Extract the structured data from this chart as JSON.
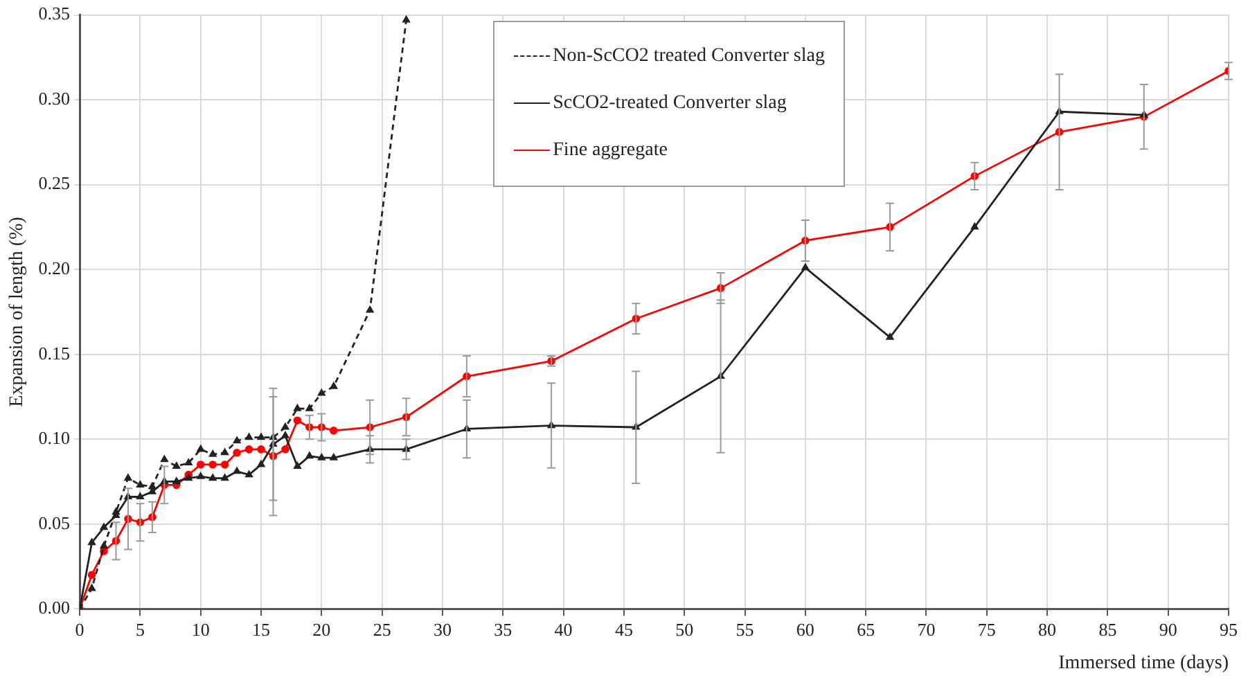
{
  "chart_data": {
    "type": "line",
    "xlabel": "Immersed time (days)",
    "ylabel": "Expansion of length (%)",
    "xlim": [
      0,
      95
    ],
    "xticks": [
      0,
      5,
      10,
      15,
      20,
      25,
      30,
      35,
      40,
      45,
      50,
      55,
      60,
      65,
      70,
      75,
      80,
      85,
      90,
      95
    ],
    "ylim": [
      0,
      0.35
    ],
    "yticks": [
      {
        "value": 0,
        "label": "0.00"
      },
      {
        "value": 0.05,
        "label": "0.05"
      },
      {
        "value": 0.1,
        "label": "0.10"
      },
      {
        "value": 0.15,
        "label": "0.15"
      },
      {
        "value": 0.2,
        "label": "0.20"
      },
      {
        "value": 0.25,
        "label": "0.25"
      },
      {
        "value": 0.3,
        "label": "0.30"
      },
      {
        "value": 0.35,
        "label": "0.35"
      }
    ],
    "grid": true,
    "legend": "top",
    "series": [
      {
        "name": "Non-ScCO2 treated Converter slag",
        "color": "#222222",
        "line_style": "dashed",
        "marker": "triangle",
        "x": [
          0,
          1,
          2,
          3,
          4,
          5,
          6,
          7,
          8,
          9,
          10,
          11,
          12,
          13,
          14,
          15,
          16,
          17,
          18,
          19,
          20,
          21,
          24,
          27
        ],
        "values": [
          0,
          0.012,
          0.037,
          0.057,
          0.077,
          0.073,
          0.072,
          0.088,
          0.084,
          0.086,
          0.094,
          0.091,
          0.092,
          0.099,
          0.101,
          0.101,
          0.101,
          0.107,
          0.118,
          0.118,
          0.127,
          0.131,
          0.176,
          0.347
        ]
      },
      {
        "name": "ScCO2-treated Converter slag",
        "color": "#222222",
        "line_style": "solid",
        "marker": "triangle",
        "x": [
          0,
          1,
          2,
          3,
          4,
          5,
          6,
          7,
          8,
          9,
          10,
          11,
          12,
          13,
          14,
          15,
          16,
          17,
          18,
          19,
          20,
          21,
          24,
          27,
          32,
          39,
          46,
          53,
          60,
          67,
          74,
          81,
          88
        ],
        "values": [
          0,
          0.039,
          0.048,
          0.055,
          0.066,
          0.066,
          0.069,
          0.075,
          0.075,
          0.077,
          0.078,
          0.077,
          0.077,
          0.081,
          0.079,
          0.085,
          0.097,
          0.102,
          0.084,
          0.09,
          0.089,
          0.089,
          0.094,
          0.094,
          0.106,
          0.108,
          0.107,
          0.137,
          0.201,
          0.16,
          0.225,
          0.293,
          0.291
        ],
        "errors": [
          null,
          null,
          null,
          null,
          null,
          null,
          null,
          null,
          null,
          null,
          null,
          null,
          null,
          null,
          null,
          null,
          0.033,
          null,
          null,
          null,
          null,
          null,
          0.008,
          0.006,
          0.017,
          0.025,
          0.033,
          0.045,
          null,
          null,
          null,
          null,
          null
        ]
      },
      {
        "name": "Fine aggregate",
        "color": "#ff0000",
        "line_style": "solid",
        "marker": "circle",
        "x": [
          0,
          1,
          2,
          3,
          4,
          5,
          6,
          7,
          8,
          9,
          10,
          11,
          12,
          13,
          14,
          15,
          16,
          17,
          18,
          19,
          20,
          21,
          24,
          27,
          32,
          39,
          46,
          53,
          60,
          67,
          74,
          81,
          88,
          95
        ],
        "values": [
          0,
          0.02,
          0.034,
          0.04,
          0.053,
          0.051,
          0.054,
          0.073,
          0.073,
          0.079,
          0.085,
          0.085,
          0.085,
          0.092,
          0.094,
          0.094,
          0.09,
          0.094,
          0.111,
          0.107,
          0.107,
          0.105,
          0.107,
          0.113,
          0.137,
          0.146,
          0.171,
          0.189,
          0.217,
          0.225,
          0.255,
          0.281,
          0.29,
          0.317
        ],
        "errors": [
          null,
          null,
          null,
          0.011,
          0.018,
          0.011,
          0.009,
          0.011,
          null,
          null,
          null,
          null,
          null,
          null,
          null,
          null,
          0.035,
          null,
          null,
          0.007,
          0.008,
          null,
          0.016,
          0.011,
          0.012,
          0.003,
          0.009,
          0.009,
          0.012,
          0.014,
          0.008,
          0.034,
          0.019,
          0.005
        ]
      }
    ]
  }
}
